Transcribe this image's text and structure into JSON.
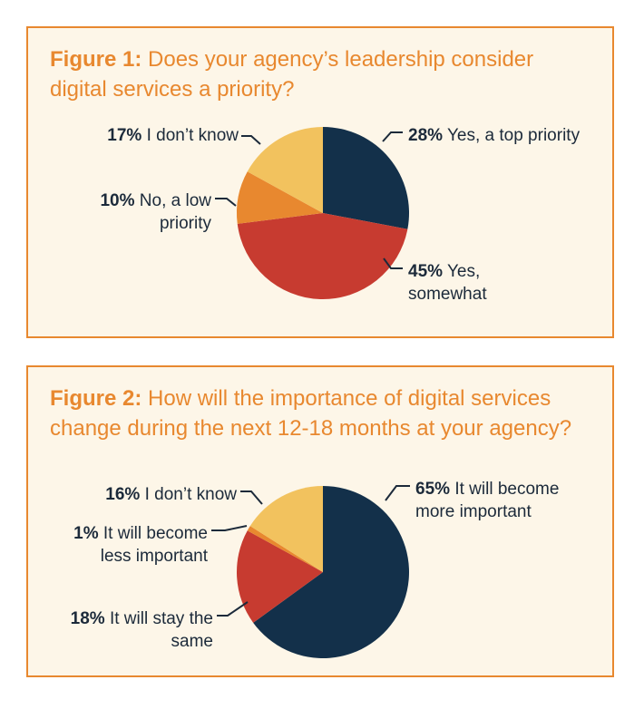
{
  "colors": {
    "navy": "#13304a",
    "red": "#c73b30",
    "orange": "#e8882f",
    "yellow": "#f2c25e",
    "border": "#e8882f",
    "panel_bg": "#fdf6e8",
    "text": "#1c2a3a"
  },
  "chart_data": [
    {
      "type": "pie",
      "title_prefix": "Figure 1:",
      "title": "Does your agency’s leadership consider digital services a priority?",
      "slices": [
        {
          "pct": "28%",
          "label": "Yes, a top priority",
          "value": 28,
          "color": "#13304a"
        },
        {
          "pct": "45%",
          "label": "Yes, somewhat",
          "value": 45,
          "color": "#c73b30"
        },
        {
          "pct": "10%",
          "label": "No, a low priority",
          "value": 10,
          "color": "#e8882f"
        },
        {
          "pct": "17%",
          "label": "I don’t know",
          "value": 17,
          "color": "#f2c25e"
        }
      ]
    },
    {
      "type": "pie",
      "title_prefix": "Figure 2:",
      "title": "How will the importance of digital services change during the next 12-18 months at your agency?",
      "slices": [
        {
          "pct": "65%",
          "label": "It will become more important",
          "value": 65,
          "color": "#13304a"
        },
        {
          "pct": "18%",
          "label": "It will stay the same",
          "value": 18,
          "color": "#c73b30"
        },
        {
          "pct": "1%",
          "label": "It will become less important",
          "value": 1,
          "color": "#e8882f"
        },
        {
          "pct": "16%",
          "label": "I don’t know",
          "value": 16,
          "color": "#f2c25e"
        }
      ]
    }
  ]
}
